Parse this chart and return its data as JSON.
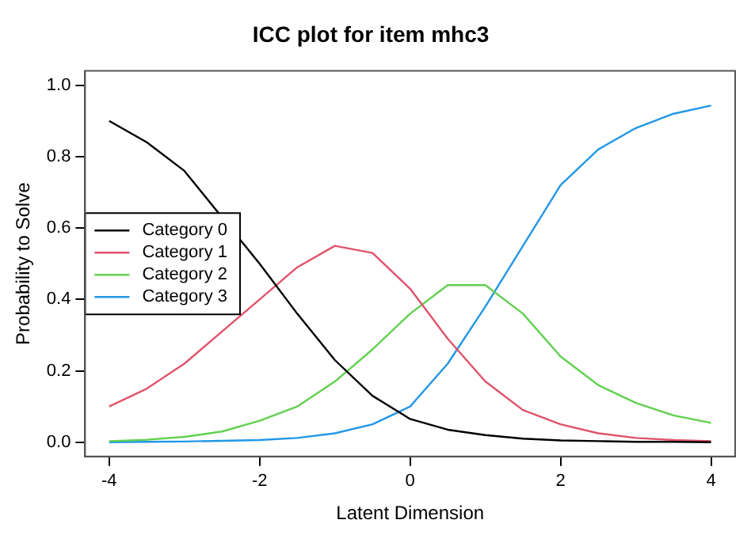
{
  "chart_data": {
    "type": "line",
    "title": "ICC plot for item mhc3",
    "xlabel": "Latent Dimension",
    "ylabel": "Probability to Solve",
    "x": [
      -4,
      -3.5,
      -3,
      -2.5,
      -2,
      -1.5,
      -1,
      -0.5,
      0,
      0.5,
      1,
      1.5,
      2,
      2.5,
      3,
      3.5,
      4
    ],
    "series": [
      {
        "name": "Category 0",
        "color": "#000000",
        "x": [
          -4,
          -3.5,
          -3,
          -2,
          -1.5,
          -1,
          -0.5,
          0,
          0.5,
          1,
          1.5,
          2,
          2.5,
          3,
          3.5,
          4
        ],
        "values": [
          0.9,
          0.84,
          0.76,
          0.5,
          0.36,
          0.23,
          0.13,
          0.065,
          0.035,
          0.02,
          0.01,
          0.005,
          0.003,
          0.001,
          0.001,
          0
        ]
      },
      {
        "name": "Category 1",
        "color": "#df536b",
        "values": [
          0.1,
          0.15,
          0.22,
          0.31,
          0.4,
          0.49,
          0.55,
          0.53,
          0.43,
          0.29,
          0.17,
          0.09,
          0.05,
          0.025,
          0.012,
          0.006,
          0.003
        ]
      },
      {
        "name": "Category 2",
        "color": "#61d04f",
        "values": [
          0.003,
          0.007,
          0.015,
          0.03,
          0.06,
          0.1,
          0.17,
          0.26,
          0.36,
          0.44,
          0.44,
          0.36,
          0.24,
          0.16,
          0.11,
          0.075,
          0.054
        ]
      },
      {
        "name": "Category 3",
        "color": "#2297e6",
        "values": [
          0,
          0.001,
          0.002,
          0.004,
          0.006,
          0.012,
          0.025,
          0.05,
          0.1,
          0.22,
          0.38,
          0.55,
          0.72,
          0.82,
          0.88,
          0.92,
          0.943
        ]
      }
    ],
    "xlim": [
      -4.32,
      4.32
    ],
    "xticks": [
      -4,
      -2,
      0,
      2,
      4
    ],
    "ylim": [
      -0.04,
      1.04
    ],
    "yticks": [
      {
        "value": 0,
        "label": "0.0"
      },
      {
        "value": 0.2,
        "label": "0.2"
      },
      {
        "value": 0.4,
        "label": "0.4"
      },
      {
        "value": 0.6,
        "label": "0.6"
      },
      {
        "value": 0.8,
        "label": "0.8"
      },
      {
        "value": 1,
        "label": "1.0"
      }
    ],
    "grid": false,
    "legend": "left",
    "marker": "none",
    "line_style": "solid"
  }
}
